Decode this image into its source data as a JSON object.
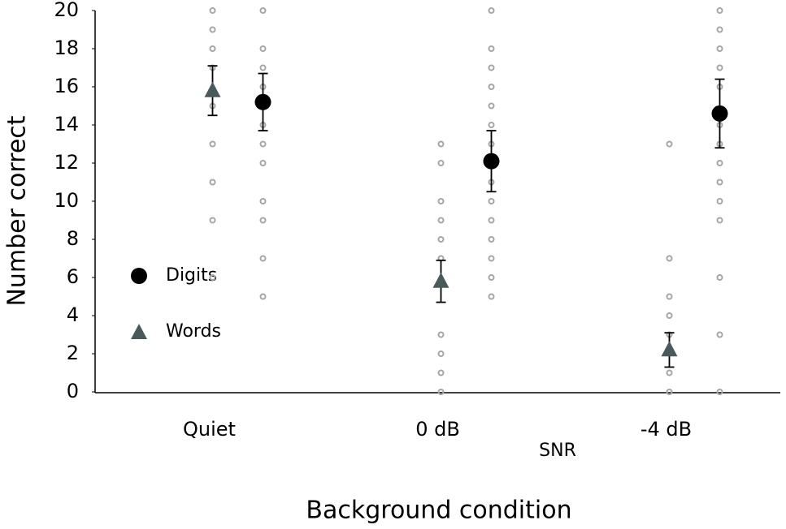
{
  "chart_data": {
    "type": "errorbar",
    "y_label": "Number correct",
    "x_label": "Background condition",
    "annotation": "SNR",
    "categories": [
      "Quiet",
      "0 dB",
      "-4 dB"
    ],
    "ylim": [
      0,
      20
    ],
    "yticks": [
      0,
      2,
      4,
      6,
      8,
      10,
      12,
      14,
      16,
      18,
      20
    ],
    "series": [
      {
        "name": "Digits",
        "color": "#000000",
        "marker": "circle",
        "values": [
          15.2,
          12.1,
          14.6
        ],
        "errors": [
          1.5,
          1.6,
          1.8
        ],
        "points": [
          [
            20,
            18,
            17,
            16,
            15,
            14,
            13,
            12,
            10,
            9,
            7,
            5
          ],
          [
            20,
            18,
            17,
            16,
            15,
            14,
            13,
            12,
            11,
            10,
            9,
            8,
            7,
            6,
            5
          ],
          [
            20,
            19,
            18,
            17,
            16,
            14,
            13,
            12,
            11,
            10,
            9,
            6,
            3,
            0
          ]
        ]
      },
      {
        "name": "Words",
        "color": "#4a5a5a",
        "marker": "triangle",
        "values": [
          15.8,
          5.8,
          2.2
        ],
        "errors": [
          1.3,
          1.1,
          0.9
        ],
        "points": [
          [
            20,
            19,
            18,
            17,
            15,
            13,
            11,
            9,
            6
          ],
          [
            13,
            12,
            10,
            9,
            8,
            7,
            3,
            2,
            1,
            0
          ],
          [
            13,
            7,
            5,
            4,
            3,
            1,
            0
          ]
        ]
      }
    ],
    "point_color": "#a6a6a6"
  }
}
